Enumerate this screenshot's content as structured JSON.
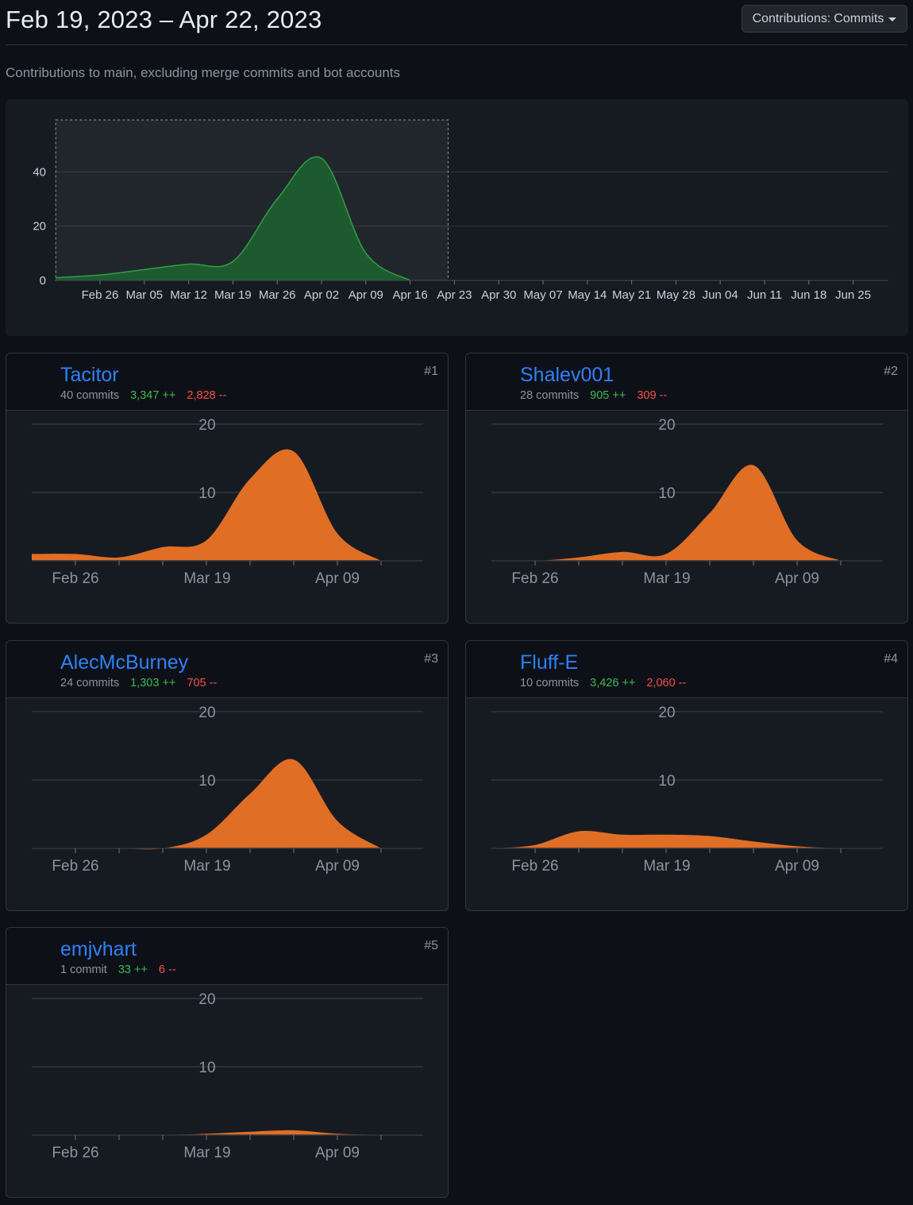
{
  "header": {
    "date_range": "Feb 19, 2023 – Apr 22, 2023",
    "contributions_label": "Contributions:",
    "contributions_value": "Commits"
  },
  "subtitle": "Contributions to main, excluding merge commits and bot accounts",
  "colors": {
    "overview_fill": "#1e5a30",
    "contributor_fill": "#e16e25",
    "link": "#2f81f7",
    "additions": "#3fb950",
    "deletions": "#f85149"
  },
  "chart_data": [
    {
      "type": "area",
      "name": "overview",
      "y_ticks": [
        0,
        20,
        40
      ],
      "ylim": [
        0,
        60
      ],
      "x_ticks": [
        "Feb 26",
        "Mar 05",
        "Mar 12",
        "Mar 19",
        "Mar 26",
        "Apr 02",
        "Apr 09",
        "Apr 16",
        "Apr 23",
        "Apr 30",
        "May 07",
        "May 14",
        "May 21",
        "May 28",
        "Jun 04",
        "Jun 11",
        "Jun 18",
        "Jun 25"
      ],
      "x": [
        "Feb 19",
        "Feb 26",
        "Mar 05",
        "Mar 12",
        "Mar 19",
        "Mar 26",
        "Apr 02",
        "Apr 09",
        "Apr 16"
      ],
      "values": [
        1,
        2,
        4,
        6,
        7,
        30,
        45,
        10,
        0
      ],
      "selection": [
        "Feb 19",
        "Apr 22"
      ],
      "grid": true
    },
    {
      "type": "area",
      "name": "Tacitor",
      "y_ticks": [
        10,
        20
      ],
      "ylim": [
        0,
        20
      ],
      "x_ticks": [
        "Feb 26",
        "Mar 19",
        "Apr 09"
      ],
      "x": [
        "Feb 19",
        "Feb 26",
        "Mar 05",
        "Mar 12",
        "Mar 19",
        "Mar 26",
        "Apr 02",
        "Apr 09",
        "Apr 16"
      ],
      "values": [
        1,
        1,
        0.5,
        2,
        3,
        12,
        16,
        4,
        0
      ],
      "grid": true
    },
    {
      "type": "area",
      "name": "Shalev001",
      "y_ticks": [
        10,
        20
      ],
      "ylim": [
        0,
        20
      ],
      "x_ticks": [
        "Feb 26",
        "Mar 19",
        "Apr 09"
      ],
      "x": [
        "Feb 19",
        "Feb 26",
        "Mar 05",
        "Mar 12",
        "Mar 19",
        "Mar 26",
        "Apr 02",
        "Apr 09",
        "Apr 16"
      ],
      "values": [
        0,
        0,
        0.5,
        1.3,
        1,
        7,
        14,
        3,
        0
      ],
      "grid": true
    },
    {
      "type": "area",
      "name": "AlecMcBurney",
      "y_ticks": [
        10,
        20
      ],
      "ylim": [
        0,
        20
      ],
      "x_ticks": [
        "Feb 26",
        "Mar 19",
        "Apr 09"
      ],
      "x": [
        "Feb 19",
        "Feb 26",
        "Mar 05",
        "Mar 12",
        "Mar 19",
        "Mar 26",
        "Apr 02",
        "Apr 09",
        "Apr 16"
      ],
      "values": [
        0,
        0,
        0,
        0,
        2,
        8,
        13,
        4,
        0
      ],
      "grid": true
    },
    {
      "type": "area",
      "name": "Fluff-E",
      "y_ticks": [
        10,
        20
      ],
      "ylim": [
        0,
        20
      ],
      "x_ticks": [
        "Feb 26",
        "Mar 19",
        "Apr 09"
      ],
      "x": [
        "Feb 19",
        "Feb 26",
        "Mar 05",
        "Mar 12",
        "Mar 19",
        "Mar 26",
        "Apr 02",
        "Apr 09",
        "Apr 16"
      ],
      "values": [
        0,
        0.5,
        2.5,
        2,
        2,
        1.8,
        1,
        0.3,
        0
      ],
      "grid": true
    },
    {
      "type": "area",
      "name": "emjvhart",
      "y_ticks": [
        10,
        20
      ],
      "ylim": [
        0,
        20
      ],
      "x_ticks": [
        "Feb 26",
        "Mar 19",
        "Apr 09"
      ],
      "x": [
        "Feb 19",
        "Feb 26",
        "Mar 05",
        "Mar 12",
        "Mar 19",
        "Mar 26",
        "Apr 02",
        "Apr 09",
        "Apr 16"
      ],
      "values": [
        0,
        0,
        0,
        0,
        0.2,
        0.5,
        0.7,
        0.2,
        0
      ],
      "grid": true
    }
  ],
  "contributors": [
    {
      "rank": "#1",
      "username": "Tacitor",
      "commits": "40 commits",
      "additions": "3,347 ++",
      "deletions": "2,828 --",
      "avatar": "swirl-avatar-icon"
    },
    {
      "rank": "#2",
      "username": "Shalev001",
      "commits": "28 commits",
      "additions": "905 ++",
      "deletions": "309 --",
      "avatar": "green-identicon"
    },
    {
      "rank": "#3",
      "username": "AlecMcBurney",
      "commits": "24 commits",
      "additions": "1,303 ++",
      "deletions": "705 --",
      "avatar": "dark-photo-avatar"
    },
    {
      "rank": "#4",
      "username": "Fluff-E",
      "commits": "10 commits",
      "additions": "3,426 ++",
      "deletions": "2,060 --",
      "avatar": "purple-identicon"
    },
    {
      "rank": "#5",
      "username": "emjvhart",
      "commits": "1 commit",
      "additions": "33 ++",
      "deletions": "6 --",
      "avatar": "yellow-identicon"
    }
  ]
}
